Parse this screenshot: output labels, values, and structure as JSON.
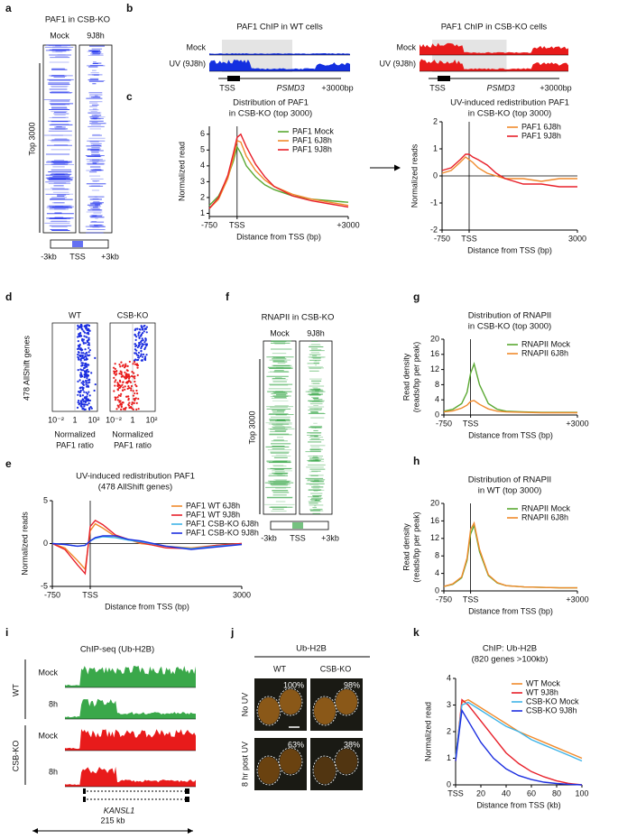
{
  "panel_labels": [
    "a",
    "b",
    "c",
    "d",
    "e",
    "f",
    "g",
    "h",
    "i",
    "j",
    "k"
  ],
  "panels": {
    "a": {
      "title": "PAF1 in CSB-KO",
      "columns": [
        "Mock",
        "9J8h"
      ],
      "side": "Top 3000",
      "bottom": [
        "-3kb",
        "TSS",
        "+3kb"
      ]
    },
    "b": {
      "left_title": "PAF1 ChIP in WT cells",
      "right_title": "PAF1 ChIP in CSB-KO cells",
      "tracks": [
        "Mock",
        "UV (9J8h)"
      ],
      "gene": {
        "tss": "TSS",
        "name": "PSMD3",
        "end": "+3000bp"
      }
    },
    "d": {
      "columns": [
        "WT",
        "CSB-KO"
      ],
      "ylabel": "478 AllShift genes",
      "xticks": [
        "10⁻²",
        "1",
        "10²"
      ],
      "xlabel": [
        "Normalized",
        "PAF1 ratio"
      ]
    },
    "f": {
      "title": "RNAPII in CSB-KO",
      "columns": [
        "Mock",
        "9J8h"
      ],
      "side": "Top 3000",
      "bottom": [
        "-3kb",
        "TSS",
        "+3kb"
      ]
    },
    "i": {
      "title": "ChIP-seq (Ub-H2B)",
      "groups": [
        "WT",
        "CSB-KO"
      ],
      "tracks": [
        "Mock",
        "8h"
      ],
      "gene": "KANSL1",
      "scale": "215 kb"
    },
    "j": {
      "title": "Ub-H2B",
      "columns": [
        "WT",
        "CSB-KO"
      ],
      "rows": [
        "No UV",
        "8 hr post UV"
      ],
      "percents": [
        [
          "100%",
          "98%"
        ],
        [
          "63%",
          "38%"
        ]
      ]
    }
  },
  "chart_data": [
    {
      "type": "line",
      "title": [
        "Distribution of PAF1",
        "in CSB-KO (top 3000)"
      ],
      "ylabel": [
        "Normalized read"
      ],
      "xlabel": "Distance from TSS (bp)",
      "x": [
        -750,
        -500,
        -250,
        -100,
        0,
        100,
        250,
        500,
        750,
        1000,
        1500,
        2000,
        2500,
        3000
      ],
      "xlim": [
        -750,
        3000
      ],
      "xticks": [
        -750,
        {
          "value": 0,
          "label": "TSS"
        },
        {
          "value": 3000,
          "label": "+3000"
        }
      ],
      "ylim": [
        0.8,
        6.5
      ],
      "yticks": [
        1,
        2,
        3,
        4,
        5,
        6
      ],
      "vline": 0,
      "legend": "upper right",
      "series": [
        {
          "name": "PAF1 Mock",
          "color": "#5aa832",
          "values": [
            1.5,
            2.1,
            3.3,
            4.3,
            5.2,
            4.8,
            4.0,
            3.3,
            2.8,
            2.5,
            2.1,
            1.9,
            1.8,
            1.7
          ]
        },
        {
          "name": "PAF1 6J8h",
          "color": "#f08a2c",
          "values": [
            1.3,
            1.9,
            3.2,
            4.5,
            5.6,
            5.5,
            4.6,
            3.7,
            3.1,
            2.7,
            2.2,
            1.9,
            1.7,
            1.5
          ]
        },
        {
          "name": "PAF1 9J8h",
          "color": "#e8202a",
          "values": [
            1.3,
            2.0,
            3.4,
            4.8,
            5.8,
            6.0,
            5.2,
            4.1,
            3.3,
            2.7,
            2.1,
            1.8,
            1.6,
            1.4
          ]
        }
      ]
    },
    {
      "type": "line",
      "title": [
        "UV-induced redistribution PAF1",
        "in CSB-KO (top 3000)"
      ],
      "ylabel": [
        "Normalized reads"
      ],
      "xlabel": "Distance from TSS (bp)",
      "x": [
        -750,
        -500,
        -250,
        -100,
        0,
        100,
        250,
        500,
        750,
        1000,
        1500,
        2000,
        2500,
        3000
      ],
      "xlim": [
        -750,
        3000
      ],
      "xticks": [
        -750,
        {
          "value": 0,
          "label": "TSS"
        },
        3000
      ],
      "ylim": [
        -2,
        2
      ],
      "yticks": [
        -2,
        -1,
        0,
        1,
        2
      ],
      "vline": 0,
      "hline": 0,
      "legend": "upper right",
      "series": [
        {
          "name": "PAF1 6J8h",
          "color": "#f08a2c",
          "values": [
            0.1,
            0.2,
            0.5,
            0.7,
            0.6,
            0.5,
            0.3,
            0.1,
            0,
            -0.1,
            -0.1,
            -0.2,
            -0.1,
            -0.1
          ]
        },
        {
          "name": "PAF1 9J8h",
          "color": "#e8202a",
          "values": [
            0.2,
            0.3,
            0.6,
            0.8,
            0.8,
            0.7,
            0.6,
            0.4,
            0.1,
            -0.1,
            -0.3,
            -0.3,
            -0.4,
            -0.4
          ]
        }
      ]
    },
    {
      "type": "line",
      "title": [
        "UV-induced redistribution PAF1",
        "(478 AllShift genes)"
      ],
      "ylabel": [
        "Normalized reads"
      ],
      "xlabel": "Distance from TSS (bp)",
      "x": [
        -750,
        -500,
        -250,
        -100,
        0,
        100,
        250,
        500,
        750,
        1000,
        1500,
        2000,
        2500,
        3000
      ],
      "xlim": [
        -750,
        3000
      ],
      "xticks": [
        -750,
        {
          "value": 0,
          "label": "TSS"
        },
        3000
      ],
      "ylim": [
        -5,
        5
      ],
      "yticks": [
        -5,
        0,
        5
      ],
      "vline": 0,
      "hline": 0,
      "legend": "upper right",
      "series": [
        {
          "name": "PAF1 WT 6J8h",
          "color": "#f08a2c",
          "values": [
            0,
            -0.5,
            -2,
            -3,
            1.5,
            2.3,
            1.8,
            0.8,
            0.5,
            0,
            -0.3,
            -0.5,
            -0.2,
            0
          ]
        },
        {
          "name": "PAF1 WT 9J8h",
          "color": "#e8202a",
          "values": [
            0,
            -0.7,
            -2.5,
            -3.5,
            2,
            2.7,
            2.2,
            1.0,
            0.5,
            0.1,
            -0.5,
            -0.6,
            -0.2,
            0
          ]
        },
        {
          "name": "PAF1 CSB-KO 6J8h",
          "color": "#3fb4e8",
          "values": [
            0,
            -0.1,
            -0.3,
            -0.2,
            0.3,
            0.6,
            0.8,
            0.7,
            0.4,
            0.2,
            -0.3,
            -0.6,
            -0.3,
            -0.1
          ]
        },
        {
          "name": "PAF1 CSB-KO 9J8h",
          "color": "#1c2ee0",
          "values": [
            0,
            -0.1,
            -0.3,
            -0.2,
            0.3,
            0.7,
            0.9,
            0.9,
            0.5,
            0.3,
            -0.3,
            -0.7,
            -0.4,
            -0.1
          ]
        }
      ]
    },
    {
      "type": "line",
      "title": [
        "Distribution of RNAPII",
        "in CSB-KO (top 3000)"
      ],
      "ylabel": [
        "Read density",
        "(reads/bp per peak)"
      ],
      "xlabel": "Distance from TSS (bp)",
      "x": [
        -750,
        -500,
        -250,
        -100,
        0,
        100,
        250,
        500,
        750,
        1000,
        1500,
        2000,
        2500,
        3000
      ],
      "xlim": [
        -750,
        3000
      ],
      "xticks": [
        -750,
        {
          "value": 0,
          "label": "TSS"
        },
        {
          "value": 3000,
          "label": "+3000"
        }
      ],
      "ylim": [
        0,
        20
      ],
      "yticks": [
        0,
        4,
        8,
        12,
        16,
        20
      ],
      "vline": 0,
      "legend": "upper right",
      "series": [
        {
          "name": "RNAPII Mock",
          "color": "#5aa832",
          "values": [
            1,
            1.5,
            3,
            6,
            11,
            13.5,
            8,
            3,
            1.5,
            1,
            0.8,
            0.7,
            0.7,
            0.7
          ]
        },
        {
          "name": "RNAPII 6J8h",
          "color": "#f08a2c",
          "values": [
            0.8,
            1.1,
            1.8,
            2.6,
            3.6,
            3.8,
            2.8,
            1.6,
            1.0,
            0.8,
            0.7,
            0.6,
            0.6,
            0.6
          ]
        }
      ]
    },
    {
      "type": "line",
      "title": [
        "Distribution of RNAPII",
        "in WT (top 3000)"
      ],
      "ylabel": [
        "Read density",
        "(reads/bp per peak)"
      ],
      "xlabel": "Distance from TSS (bp)",
      "x": [
        -750,
        -500,
        -250,
        -100,
        0,
        100,
        250,
        500,
        750,
        1000,
        1500,
        2000,
        2500,
        3000
      ],
      "xlim": [
        -750,
        3000
      ],
      "xticks": [
        -750,
        {
          "value": 0,
          "label": "TSS"
        },
        {
          "value": 3000,
          "label": "+3000"
        }
      ],
      "ylim": [
        0,
        20
      ],
      "yticks": [
        0,
        4,
        8,
        12,
        16,
        20
      ],
      "vline": 0,
      "legend": "upper right",
      "series": [
        {
          "name": "RNAPII Mock",
          "color": "#5aa832",
          "values": [
            1,
            1.5,
            3,
            7,
            13,
            15,
            9,
            3.5,
            1.8,
            1.2,
            0.9,
            0.8,
            0.7,
            0.7
          ]
        },
        {
          "name": "RNAPII 6J8h",
          "color": "#f08a2c",
          "values": [
            1,
            1.6,
            3.2,
            7.5,
            14,
            15.5,
            9.5,
            3.7,
            1.9,
            1.2,
            0.9,
            0.8,
            0.7,
            0.7
          ]
        }
      ]
    },
    {
      "type": "line",
      "title": [
        "ChIP: Ub-H2B",
        "(820 genes >100kb)"
      ],
      "ylabel": [
        "Normalized read"
      ],
      "xlabel": "Distance from TSS (kb)",
      "x": [
        0,
        5,
        10,
        20,
        30,
        40,
        50,
        60,
        70,
        80,
        90,
        100
      ],
      "xlim": [
        0,
        100
      ],
      "xticks": [
        {
          "value": 0,
          "label": "TSS"
        },
        20,
        40,
        60,
        80,
        100
      ],
      "ylim": [
        0,
        4
      ],
      "yticks": [
        0,
        1,
        2,
        3,
        4
      ],
      "legend": "upper right",
      "series": [
        {
          "name": "WT Mock",
          "color": "#f08a2c",
          "values": [
            1.0,
            3.1,
            3.2,
            2.9,
            2.6,
            2.3,
            2.0,
            1.8,
            1.6,
            1.4,
            1.2,
            1.0
          ]
        },
        {
          "name": "WT 9J8h",
          "color": "#e8202a",
          "values": [
            0.9,
            3.2,
            3.0,
            2.4,
            1.8,
            1.2,
            0.8,
            0.5,
            0.3,
            0.15,
            0.05,
            0
          ]
        },
        {
          "name": "CSB-KO Mock",
          "color": "#3fb4e8",
          "values": [
            1.0,
            3.0,
            3.1,
            2.8,
            2.5,
            2.2,
            2.0,
            1.7,
            1.5,
            1.3,
            1.1,
            0.9
          ]
        },
        {
          "name": "CSB-KO 9J8h",
          "color": "#1c2ee0",
          "values": [
            0.9,
            2.8,
            2.4,
            1.6,
            1.0,
            0.6,
            0.35,
            0.2,
            0.1,
            0.05,
            0.02,
            0
          ]
        }
      ]
    }
  ]
}
